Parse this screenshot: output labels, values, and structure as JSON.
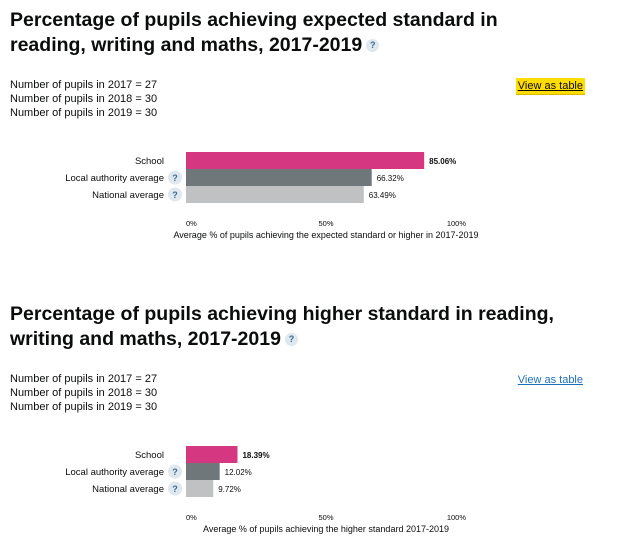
{
  "sections": [
    {
      "title": "Percentage of pupils achieving expected standard in reading, writing and maths, 2017-2019",
      "pupils": [
        "Number of pupils in 2017 = 27",
        "Number of pupils in 2018 = 30",
        "Number of pupils in 2019 = 30"
      ],
      "view_link": "View as table",
      "view_link_focused": true
    },
    {
      "title": "Percentage of pupils achieving higher standard in reading, writing and maths, 2017-2019",
      "pupils": [
        "Number of pupils in 2017 = 27",
        "Number of pupils in 2018 = 30",
        "Number of pupils in 2019 = 30"
      ],
      "view_link": "View as table",
      "view_link_focused": false
    }
  ],
  "help_glyph": "?",
  "chart_data": [
    {
      "type": "bar",
      "orientation": "horizontal",
      "categories": [
        "School",
        "Local authority average",
        "National average"
      ],
      "values": [
        85.06,
        66.32,
        63.49
      ],
      "value_labels": [
        "85.06%",
        "66.32%",
        "63.49%"
      ],
      "help_on": [
        false,
        true,
        true
      ],
      "colors": [
        "#d53880",
        "#6f777b",
        "#bfc1c3"
      ],
      "xlim": [
        0,
        100
      ],
      "ticks": [
        "0%",
        "50%",
        "100%"
      ],
      "xlabel": "Average % of pupils achieving the expected standard or higher in 2017-2019"
    },
    {
      "type": "bar",
      "orientation": "horizontal",
      "categories": [
        "School",
        "Local authority average",
        "National average"
      ],
      "values": [
        18.39,
        12.02,
        9.72
      ],
      "value_labels": [
        "18.39%",
        "12.02%",
        "9.72%"
      ],
      "help_on": [
        false,
        true,
        true
      ],
      "colors": [
        "#d53880",
        "#6f777b",
        "#bfc1c3"
      ],
      "xlim": [
        0,
        100
      ],
      "ticks": [
        "0%",
        "50%",
        "100%"
      ],
      "xlabel": "Average % of pupils achieving the higher standard 2017-2019"
    }
  ]
}
